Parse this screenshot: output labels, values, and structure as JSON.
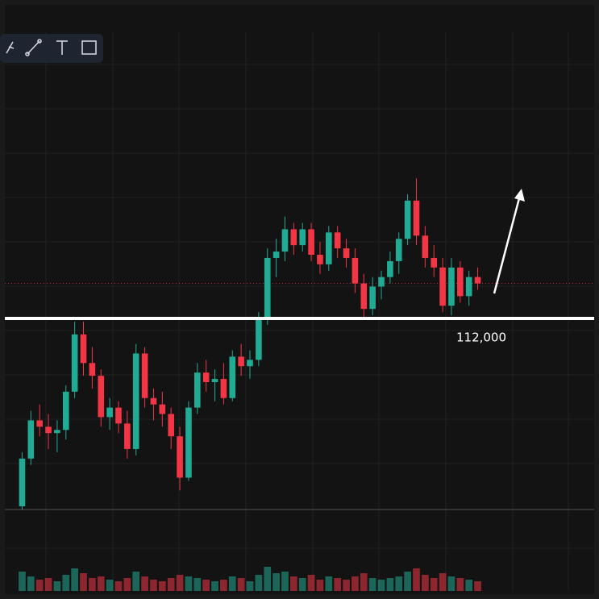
{
  "chart_data": {
    "type": "candlestick",
    "ylim": [
      106000,
      122000
    ],
    "up_color": "#22ab94",
    "down_color": "#f23645",
    "level": {
      "value": 112000,
      "label": "112,000"
    },
    "open": [
      106100,
      107600,
      108800,
      108600,
      108400,
      108500,
      109700,
      111500,
      110600,
      110200,
      108900,
      109200,
      108700,
      107900,
      110900,
      109500,
      109300,
      109000,
      108300,
      107000,
      109200,
      110300,
      110000,
      110100,
      109500,
      110800,
      110500,
      110700,
      112000,
      113900,
      114100,
      114800,
      114300,
      114800,
      114000,
      113700,
      114700,
      114200,
      113900,
      113100,
      112300,
      113000,
      113300,
      113800,
      114500,
      115700,
      114600,
      113900,
      113600,
      112400,
      113600,
      112700,
      113300
    ],
    "high": [
      107800,
      109100,
      109300,
      109000,
      108800,
      109900,
      111900,
      111900,
      111100,
      110400,
      109500,
      109400,
      109100,
      111200,
      111100,
      109800,
      109700,
      109200,
      108600,
      109400,
      110600,
      110700,
      110400,
      110600,
      111000,
      111200,
      111000,
      112200,
      114200,
      114500,
      115200,
      115000,
      115000,
      115000,
      114400,
      114900,
      114900,
      114500,
      114200,
      113400,
      113300,
      113500,
      114100,
      114700,
      115900,
      116400,
      114900,
      114300,
      113900,
      113900,
      113800,
      113500,
      113600
    ],
    "low": [
      106000,
      107400,
      108300,
      107900,
      107800,
      108200,
      109500,
      110200,
      109800,
      108600,
      108500,
      108400,
      107600,
      107700,
      109200,
      108800,
      108600,
      107900,
      106600,
      106900,
      109000,
      109700,
      109400,
      109300,
      109400,
      110200,
      110100,
      110500,
      111800,
      113300,
      113800,
      114000,
      114100,
      113800,
      113400,
      113500,
      113900,
      113600,
      112800,
      112000,
      112100,
      112600,
      113100,
      113400,
      114300,
      114300,
      113600,
      113300,
      112200,
      112100,
      112500,
      112400,
      112900
    ],
    "close": [
      107600,
      108800,
      108600,
      108400,
      108500,
      109700,
      111500,
      110600,
      110200,
      108900,
      109200,
      108700,
      107900,
      110900,
      109500,
      109300,
      109000,
      108300,
      107000,
      109200,
      110300,
      110000,
      110100,
      109500,
      110800,
      110500,
      110700,
      112000,
      113900,
      114100,
      114800,
      114300,
      114800,
      114000,
      113700,
      114700,
      114200,
      113900,
      113100,
      112300,
      113000,
      113300,
      113800,
      114500,
      115700,
      114600,
      113900,
      113600,
      112400,
      113600,
      112700,
      113300,
      113100
    ],
    "volume": [
      12,
      9,
      7,
      8,
      6,
      10,
      14,
      11,
      8,
      9,
      7,
      6,
      8,
      12,
      9,
      7,
      6,
      8,
      10,
      9,
      8,
      7,
      6,
      7,
      9,
      8,
      6,
      10,
      15,
      11,
      12,
      9,
      8,
      10,
      7,
      9,
      8,
      7,
      9,
      11,
      8,
      7,
      8,
      9,
      12,
      14,
      10,
      8,
      11,
      9,
      8,
      7,
      6
    ]
  }
}
